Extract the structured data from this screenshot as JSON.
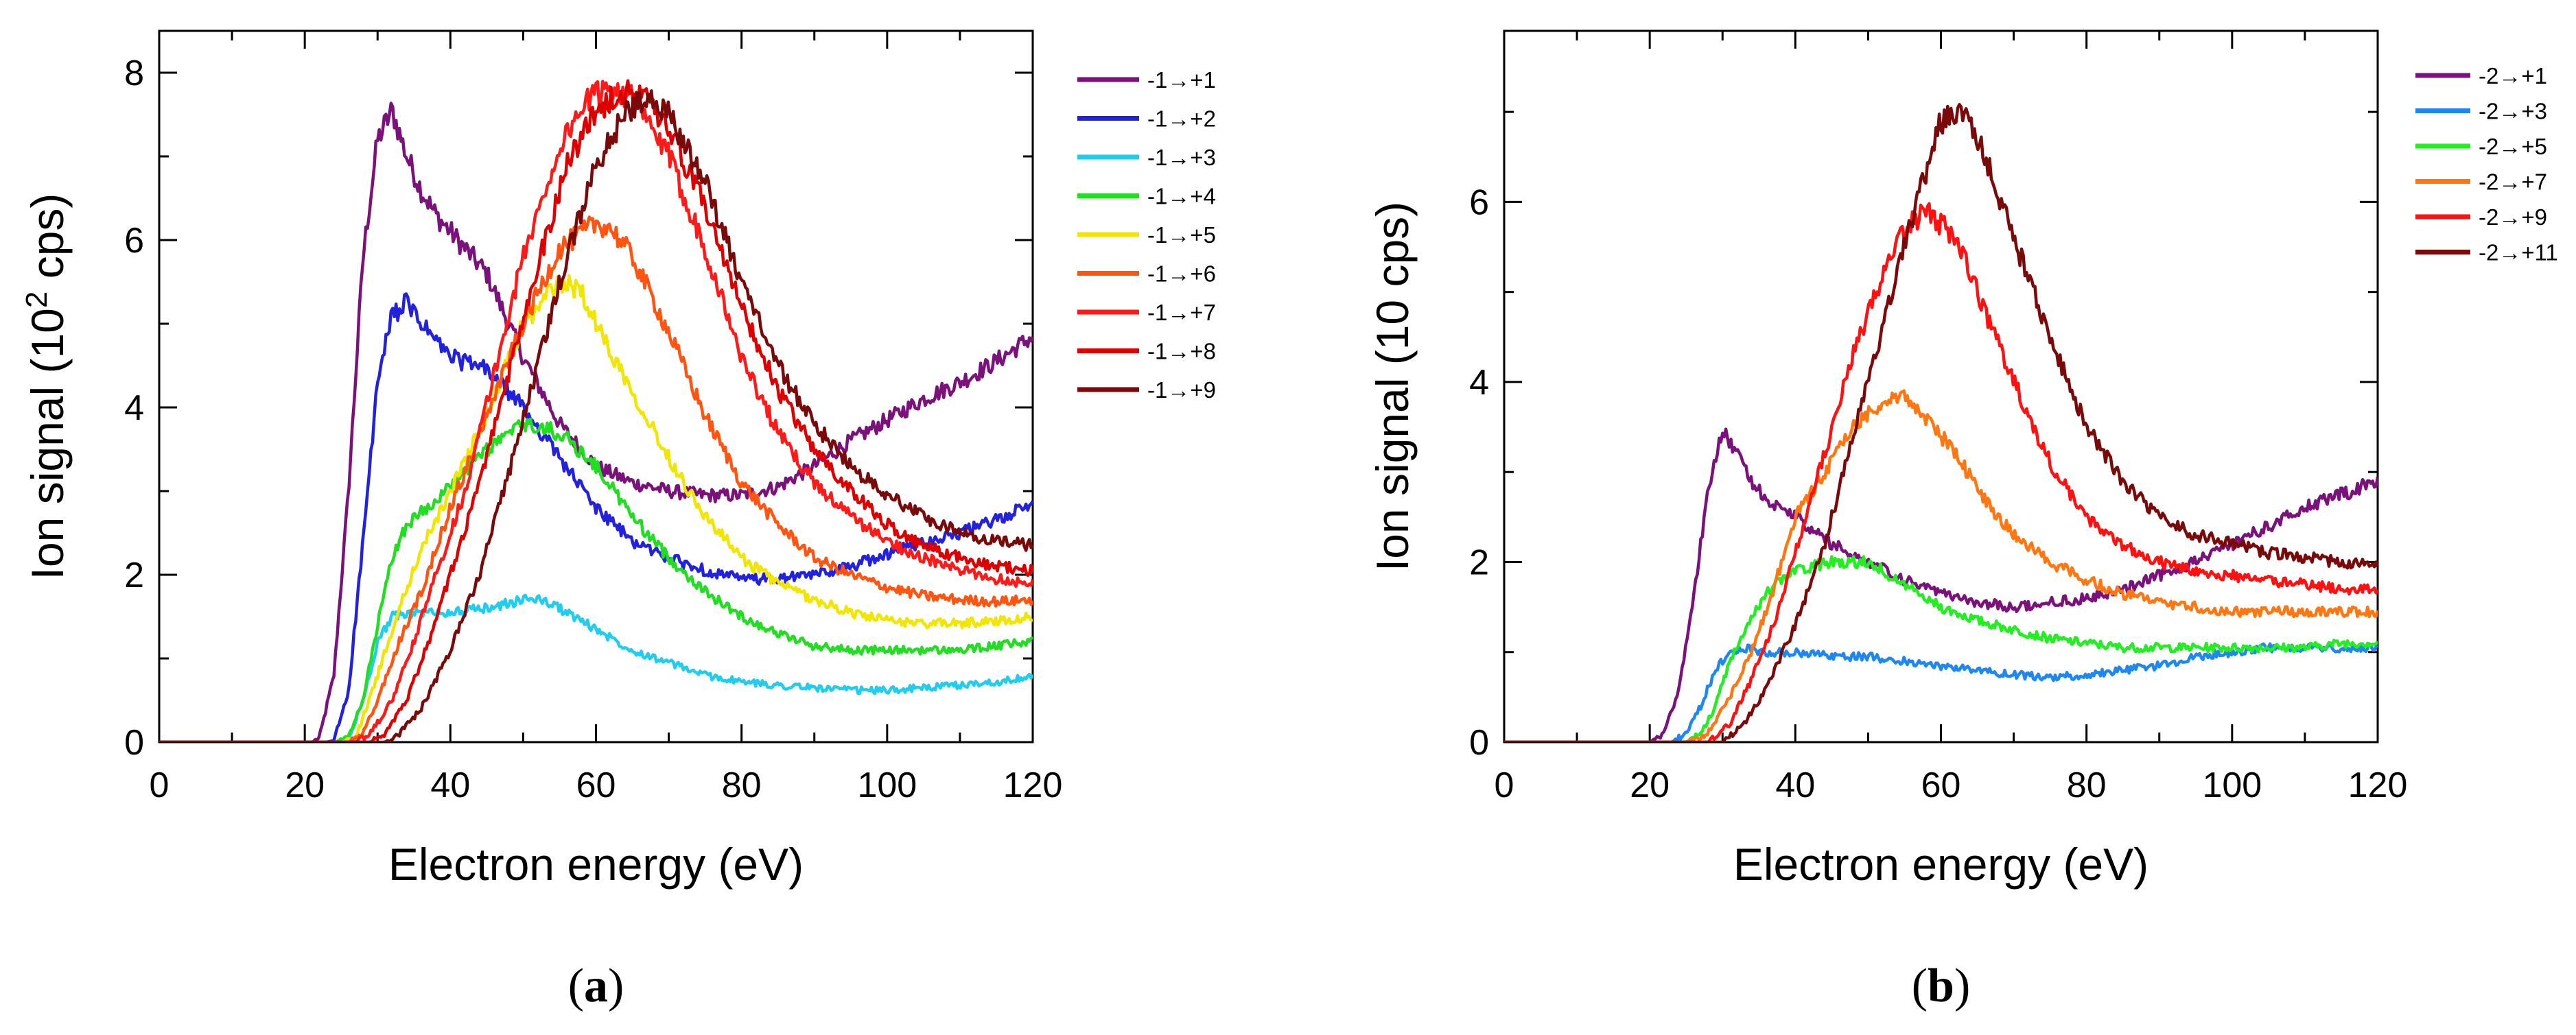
{
  "chart_data": [
    {
      "type": "line",
      "panel_label": "a",
      "xlabel": "Electron energy (eV)",
      "ylabel_main": "Ion signal (10",
      "ylabel_sup": "2",
      "ylabel_tail": " cps)",
      "xlim": [
        0,
        120
      ],
      "ylim": [
        0,
        8.5
      ],
      "xticks": [
        0,
        20,
        40,
        60,
        80,
        100,
        120
      ],
      "yticks": [
        0,
        2,
        4,
        6,
        8
      ],
      "legend_position": "right-outside",
      "series": [
        {
          "name": "-1→+1",
          "color": "#7b117b",
          "x": [
            0,
            20,
            21,
            22,
            24,
            26,
            28,
            30,
            32,
            34,
            36,
            38,
            40,
            45,
            50,
            55,
            60,
            65,
            70,
            75,
            80,
            85,
            90,
            95,
            100,
            105,
            110,
            115,
            120
          ],
          "y": [
            0,
            0,
            0,
            0.05,
            0.8,
            3.0,
            5.8,
            7.2,
            7.55,
            7.0,
            6.6,
            6.3,
            6.1,
            5.6,
            4.6,
            3.8,
            3.3,
            3.1,
            3.0,
            2.95,
            2.95,
            3.05,
            3.3,
            3.6,
            3.85,
            4.1,
            4.3,
            4.55,
            4.85
          ]
        },
        {
          "name": "-1→+2",
          "color": "#2222dd",
          "x": [
            0,
            22,
            23,
            24,
            26,
            28,
            30,
            32,
            34,
            36,
            38,
            40,
            45,
            50,
            55,
            60,
            65,
            70,
            75,
            80,
            85,
            90,
            95,
            100,
            105,
            110,
            115,
            120
          ],
          "y": [
            0,
            0,
            0,
            0.02,
            0.6,
            2.4,
            4.3,
            5.1,
            5.25,
            5.0,
            4.8,
            4.6,
            4.45,
            4.0,
            3.4,
            2.8,
            2.4,
            2.2,
            2.05,
            1.95,
            1.95,
            2.0,
            2.1,
            2.25,
            2.4,
            2.5,
            2.65,
            2.85
          ]
        },
        {
          "name": "-1→+3",
          "color": "#22ccee",
          "x": [
            0,
            25,
            26,
            28,
            30,
            32,
            35,
            40,
            45,
            50,
            52,
            55,
            60,
            65,
            70,
            75,
            80,
            85,
            90,
            95,
            100,
            105,
            110,
            115,
            120
          ],
          "y": [
            0,
            0,
            0.02,
            0.5,
            1.2,
            1.5,
            1.55,
            1.55,
            1.6,
            1.7,
            1.72,
            1.6,
            1.35,
            1.1,
            0.95,
            0.8,
            0.72,
            0.68,
            0.65,
            0.62,
            0.62,
            0.65,
            0.68,
            0.72,
            0.78
          ]
        },
        {
          "name": "-1→+4",
          "color": "#22dd22",
          "x": [
            0,
            24,
            26,
            28,
            30,
            32,
            34,
            36,
            40,
            45,
            50,
            55,
            60,
            65,
            70,
            75,
            80,
            85,
            90,
            95,
            100,
            105,
            110,
            115,
            120
          ],
          "y": [
            0,
            0,
            0.05,
            0.5,
            1.4,
            2.2,
            2.6,
            2.75,
            3.05,
            3.5,
            3.8,
            3.7,
            3.3,
            2.7,
            2.2,
            1.8,
            1.5,
            1.3,
            1.15,
            1.1,
            1.1,
            1.1,
            1.1,
            1.15,
            1.2
          ]
        },
        {
          "name": "-1→+5",
          "color": "#f2e600",
          "x": [
            0,
            25,
            27,
            30,
            33,
            36,
            40,
            45,
            50,
            55,
            58,
            60,
            65,
            70,
            75,
            80,
            85,
            90,
            95,
            100,
            105,
            110,
            115,
            120
          ],
          "y": [
            0,
            0,
            0.05,
            0.8,
            1.6,
            2.3,
            3.0,
            3.9,
            5.0,
            5.5,
            5.4,
            5.0,
            4.2,
            3.4,
            2.7,
            2.2,
            1.9,
            1.7,
            1.55,
            1.45,
            1.42,
            1.42,
            1.45,
            1.5
          ]
        },
        {
          "name": "-1→+6",
          "color": "#ff5511",
          "x": [
            0,
            26,
            28,
            30,
            33,
            36,
            40,
            45,
            50,
            55,
            60,
            62,
            65,
            70,
            75,
            80,
            85,
            90,
            95,
            100,
            105,
            110,
            115,
            120
          ],
          "y": [
            0,
            0,
            0.1,
            0.5,
            1.2,
            1.8,
            2.8,
            3.9,
            5.0,
            5.9,
            6.2,
            6.15,
            5.8,
            4.9,
            3.9,
            3.1,
            2.6,
            2.2,
            2.0,
            1.85,
            1.75,
            1.7,
            1.68,
            1.7
          ]
        },
        {
          "name": "-1→+7",
          "color": "#ff1a1a",
          "x": [
            0,
            27,
            29,
            32,
            35,
            38,
            42,
            46,
            50,
            55,
            58,
            62,
            65,
            70,
            75,
            80,
            85,
            90,
            95,
            100,
            105,
            110,
            115,
            120
          ],
          "y": [
            0,
            0,
            0.1,
            0.5,
            1.2,
            2.0,
            3.0,
            4.4,
            5.8,
            7.1,
            7.6,
            7.85,
            7.7,
            7.0,
            5.9,
            4.6,
            3.7,
            3.1,
            2.7,
            2.4,
            2.2,
            2.05,
            1.95,
            1.9
          ]
        },
        {
          "name": "-1→+8",
          "color": "#dd0000",
          "x": [
            0,
            29,
            31,
            34,
            37,
            40,
            44,
            48,
            52,
            56,
            60,
            64,
            66,
            70,
            75,
            80,
            85,
            90,
            95,
            100,
            105,
            110,
            115,
            120
          ],
          "y": [
            0,
            0,
            0.1,
            0.5,
            1.2,
            2.0,
            3.1,
            4.4,
            5.7,
            6.9,
            7.55,
            7.8,
            7.75,
            7.3,
            6.4,
            5.2,
            4.2,
            3.5,
            3.0,
            2.6,
            2.35,
            2.2,
            2.1,
            2.05
          ]
        },
        {
          "name": "-1→+9",
          "color": "#7a0a0a",
          "x": [
            0,
            31,
            33,
            36,
            40,
            44,
            48,
            52,
            56,
            60,
            64,
            67,
            70,
            75,
            80,
            85,
            90,
            95,
            100,
            105,
            110,
            115,
            120
          ],
          "y": [
            0,
            0,
            0.1,
            0.4,
            1.1,
            2.0,
            3.2,
            4.5,
            5.8,
            6.9,
            7.5,
            7.75,
            7.5,
            6.7,
            5.5,
            4.5,
            3.8,
            3.3,
            2.95,
            2.7,
            2.5,
            2.4,
            2.35
          ]
        }
      ]
    },
    {
      "type": "line",
      "panel_label": "b",
      "xlabel": "Electron energy (eV)",
      "ylabel_main": "Ion signal (10 cps)",
      "xlim": [
        0,
        120
      ],
      "ylim": [
        0,
        7.9
      ],
      "xticks": [
        0,
        20,
        40,
        60,
        80,
        100,
        120
      ],
      "yticks": [
        0,
        2,
        4,
        6
      ],
      "legend_position": "right-outside",
      "series": [
        {
          "name": "-2→+1",
          "color": "#7b117b",
          "x": [
            0,
            20,
            22,
            24,
            26,
            28,
            30,
            32,
            34,
            36,
            40,
            45,
            50,
            55,
            60,
            65,
            70,
            75,
            80,
            85,
            90,
            95,
            100,
            105,
            110,
            115,
            120
          ],
          "y": [
            0,
            0,
            0.1,
            0.6,
            1.6,
            2.8,
            3.5,
            3.2,
            2.9,
            2.7,
            2.5,
            2.2,
            2.0,
            1.8,
            1.65,
            1.55,
            1.5,
            1.55,
            1.6,
            1.7,
            1.85,
            2.0,
            2.2,
            2.4,
            2.6,
            2.75,
            2.9
          ]
        },
        {
          "name": "-2→+3",
          "color": "#1e88ee",
          "x": [
            0,
            23,
            25,
            27,
            29,
            31,
            33,
            36,
            40,
            45,
            50,
            55,
            60,
            65,
            70,
            75,
            80,
            85,
            90,
            95,
            100,
            105,
            110,
            115,
            120
          ],
          "y": [
            0,
            0,
            0.1,
            0.4,
            0.8,
            1.0,
            1.05,
            1.0,
            1.0,
            0.95,
            0.95,
            0.9,
            0.85,
            0.8,
            0.75,
            0.72,
            0.75,
            0.8,
            0.85,
            0.95,
            1.0,
            1.05,
            1.05,
            1.05,
            1.05
          ]
        },
        {
          "name": "-2→+5",
          "color": "#22ee22",
          "x": [
            0,
            25,
            27,
            29,
            31,
            34,
            37,
            40,
            45,
            50,
            55,
            60,
            65,
            70,
            75,
            80,
            85,
            90,
            95,
            100,
            105,
            110,
            115,
            120
          ],
          "y": [
            0,
            0,
            0.1,
            0.4,
            0.9,
            1.4,
            1.75,
            1.9,
            2.0,
            2.0,
            1.75,
            1.5,
            1.35,
            1.25,
            1.15,
            1.1,
            1.05,
            1.05,
            1.05,
            1.05,
            1.05,
            1.05,
            1.1,
            1.1
          ]
        },
        {
          "name": "-2→+7",
          "color": "#ff7711",
          "x": [
            0,
            25,
            28,
            31,
            34,
            37,
            40,
            44,
            48,
            52,
            55,
            58,
            62,
            66,
            70,
            75,
            80,
            85,
            90,
            95,
            100,
            105,
            110,
            115,
            120
          ],
          "y": [
            0,
            0,
            0.1,
            0.5,
            1.0,
            1.7,
            2.5,
            3.0,
            3.5,
            3.8,
            3.85,
            3.6,
            3.2,
            2.7,
            2.3,
            2.0,
            1.8,
            1.65,
            1.55,
            1.5,
            1.45,
            1.45,
            1.45,
            1.45,
            1.45
          ]
        },
        {
          "name": "-2→+9",
          "color": "#ff1111",
          "x": [
            0,
            28,
            31,
            34,
            37,
            40,
            44,
            48,
            52,
            55,
            58,
            62,
            65,
            70,
            75,
            80,
            85,
            90,
            95,
            100,
            105,
            110,
            115,
            120
          ],
          "y": [
            0,
            0,
            0.2,
            0.7,
            1.3,
            2.1,
            3.2,
            4.3,
            5.2,
            5.7,
            5.9,
            5.6,
            5.0,
            4.0,
            3.1,
            2.5,
            2.2,
            2.0,
            1.9,
            1.85,
            1.8,
            1.75,
            1.7,
            1.7
          ]
        },
        {
          "name": "-2→+11",
          "color": "#7a0a0a",
          "x": [
            0,
            30,
            33,
            36,
            40,
            44,
            48,
            52,
            56,
            60,
            63,
            66,
            70,
            75,
            80,
            85,
            90,
            95,
            100,
            105,
            110,
            115,
            120
          ],
          "y": [
            0,
            0,
            0.2,
            0.6,
            1.3,
            2.2,
            3.4,
            4.6,
            5.8,
            6.9,
            7.0,
            6.5,
            5.6,
            4.5,
            3.5,
            2.9,
            2.5,
            2.3,
            2.2,
            2.1,
            2.05,
            2.0,
            1.95
          ]
        }
      ]
    }
  ]
}
